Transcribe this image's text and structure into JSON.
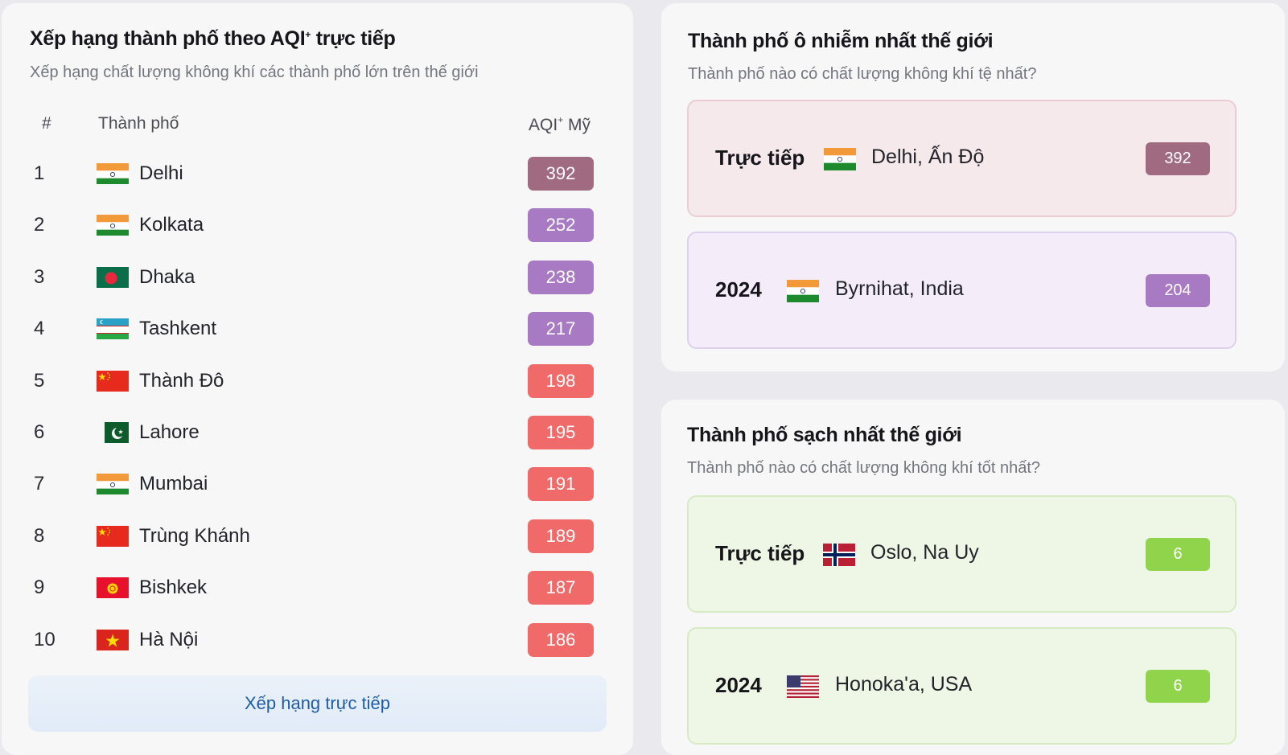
{
  "ranking": {
    "title": "Xếp hạng thành phố theo AQI",
    "title_star": "+",
    "title_tail": " trực tiếp",
    "subtitle": "Xếp hạng chất lượng không khí các thành phố lớn trên thế giới",
    "col_rank": "#",
    "col_city": "Thành phố",
    "col_aqi": "AQI",
    "col_aqi_star": "+",
    "col_aqi_tail": " Mỹ",
    "rows": [
      {
        "rank": "1",
        "city": "Delhi",
        "flag": "india-flag",
        "aqi": 392,
        "color": "#a06a80"
      },
      {
        "rank": "2",
        "city": "Kolkata",
        "flag": "india-flag",
        "aqi": 252,
        "color": "#a87ac4"
      },
      {
        "rank": "3",
        "city": "Dhaka",
        "flag": "bangladesh-flag",
        "aqi": 238,
        "color": "#a87ac4"
      },
      {
        "rank": "4",
        "city": "Tashkent",
        "flag": "uzbekistan-flag",
        "aqi": 217,
        "color": "#a87ac4"
      },
      {
        "rank": "5",
        "city": "Thành Đô",
        "flag": "china-flag",
        "aqi": 198,
        "color": "#f06a6a"
      },
      {
        "rank": "6",
        "city": "Lahore",
        "flag": "pakistan-flag",
        "aqi": 195,
        "color": "#f06a6a"
      },
      {
        "rank": "7",
        "city": "Mumbai",
        "flag": "india-flag",
        "aqi": 191,
        "color": "#f06a6a"
      },
      {
        "rank": "8",
        "city": "Trùng Khánh",
        "flag": "china-flag",
        "aqi": 189,
        "color": "#f06a6a"
      },
      {
        "rank": "9",
        "city": "Bishkek",
        "flag": "kyrgyzstan-flag",
        "aqi": 187,
        "color": "#f06a6a"
      },
      {
        "rank": "10",
        "city": "Hà Nội",
        "flag": "vietnam-flag",
        "aqi": 186,
        "color": "#f06a6a"
      }
    ],
    "button_label": "Xếp hạng trực tiếp"
  },
  "polluted": {
    "title": "Thành phố ô nhiễm nhất thế giới",
    "subtitle": "Thành phố nào có chất lượng không khí tệ nhất?",
    "items": [
      {
        "label": "Trực tiếp",
        "city": "Delhi, Ấn Độ",
        "flag": "india-flag",
        "aqi": "392",
        "color": "#a06a80",
        "bg": "#f6e9ec",
        "border": "#e9cdd3"
      },
      {
        "label": "2024",
        "city": "Byrnihat, India",
        "flag": "india-flag",
        "aqi": "204",
        "color": "#a87ac4",
        "bg": "#f4edf9",
        "border": "#ddd0ea"
      }
    ]
  },
  "clean": {
    "title": "Thành phố sạch nhất thế giới",
    "subtitle": "Thành phố nào có chất lượng không khí tốt nhất?",
    "items": [
      {
        "label": "Trực tiếp",
        "city": "Oslo, Na Uy",
        "flag": "norway-flag",
        "aqi": "6",
        "color": "#8fd44a",
        "bg": "#eef7e6",
        "border": "#d6ebc3"
      },
      {
        "label": "2024",
        "city": "Honoka'a, USA",
        "flag": "usa-flag",
        "aqi": "6",
        "color": "#8fd44a",
        "bg": "#eef7e6",
        "border": "#d6ebc3"
      }
    ]
  }
}
